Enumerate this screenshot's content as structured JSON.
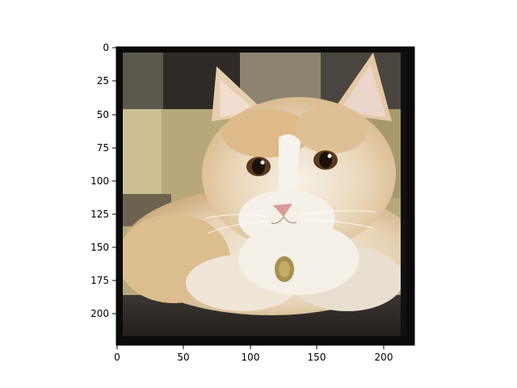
{
  "figure": {
    "image_description": "Cream / light orange long-haired kitten lying on a dark granite countertop, wearing a small round gold tag, in front of beige square wall tiles; image has a dark border.",
    "axes": {
      "x_ticks": [
        "0",
        "50",
        "100",
        "150",
        "200"
      ],
      "y_ticks": [
        "0",
        "25",
        "50",
        "75",
        "100",
        "125",
        "150",
        "175",
        "200"
      ],
      "x_range": [
        0,
        224
      ],
      "y_range": [
        0,
        224
      ]
    }
  },
  "colors": {
    "frame": "#0b0b0b",
    "fur_main": "#e9d7bb",
    "fur_orange": "#d9b27f",
    "fur_white": "#f3efe8",
    "tile_light": "#c8b98c",
    "tile_mid": "#a89a6c",
    "tile_dark": "#3a3530",
    "counter": "#2a2724",
    "eye": "#5a3a1c",
    "nose": "#d99a95",
    "tag": "#a88f4e"
  }
}
